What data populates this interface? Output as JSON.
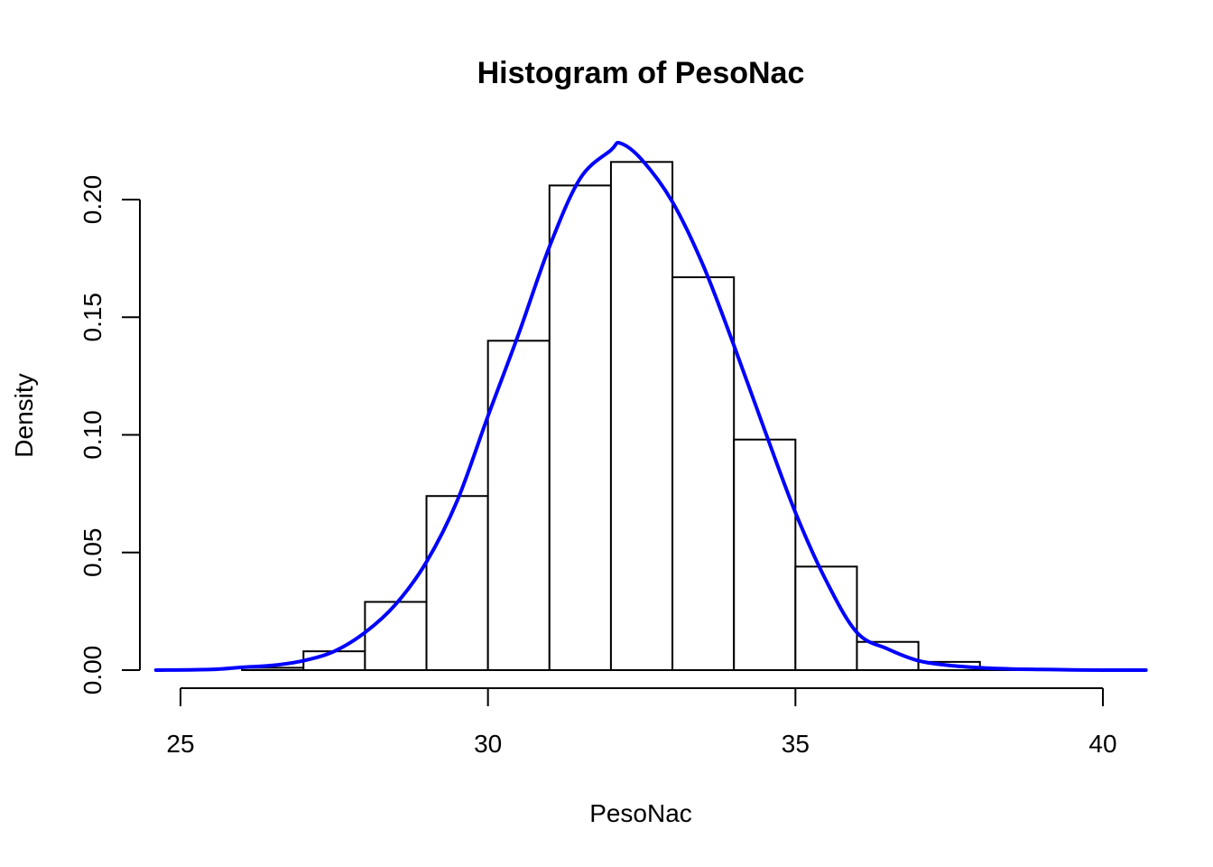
{
  "chart_data": {
    "type": "bar",
    "title": "Histogram of PesoNac",
    "xlabel": "PesoNac",
    "ylabel": "Density",
    "xlim": [
      24.6,
      40.7
    ],
    "ylim": [
      0,
      0.225
    ],
    "x_ticks": [
      25,
      30,
      35,
      40
    ],
    "x_tick_labels": [
      "25",
      "30",
      "35",
      "40"
    ],
    "y_ticks": [
      0,
      0.05,
      0.1,
      0.15,
      0.2
    ],
    "y_tick_labels": [
      "0.00",
      "0.05",
      "0.10",
      "0.15",
      "0.20"
    ],
    "grid": false,
    "bins": [
      {
        "start": 26,
        "end": 27,
        "density": 0.001
      },
      {
        "start": 27,
        "end": 28,
        "density": 0.008
      },
      {
        "start": 28,
        "end": 29,
        "density": 0.029
      },
      {
        "start": 29,
        "end": 30,
        "density": 0.074
      },
      {
        "start": 30,
        "end": 31,
        "density": 0.14
      },
      {
        "start": 31,
        "end": 32,
        "density": 0.206
      },
      {
        "start": 32,
        "end": 33,
        "density": 0.216
      },
      {
        "start": 33,
        "end": 34,
        "density": 0.167
      },
      {
        "start": 34,
        "end": 35,
        "density": 0.098
      },
      {
        "start": 35,
        "end": 36,
        "density": 0.044
      },
      {
        "start": 36,
        "end": 37,
        "density": 0.012
      },
      {
        "start": 37,
        "end": 38,
        "density": 0.0035
      },
      {
        "start": 38,
        "end": 39,
        "density": 0.0005
      }
    ],
    "density_curve": {
      "color": "#0000ff",
      "x": [
        24.6,
        25.5,
        26.0,
        26.5,
        27.0,
        27.5,
        28.0,
        28.5,
        29.0,
        29.5,
        30.0,
        30.5,
        31.0,
        31.5,
        32.0,
        32.15,
        32.5,
        33.0,
        33.5,
        34.0,
        34.5,
        35.0,
        35.5,
        36.0,
        36.5,
        37.0,
        37.5,
        38.0,
        38.5,
        39.0,
        39.5,
        40.0,
        40.7
      ],
      "y": [
        0.0,
        0.0003,
        0.0012,
        0.002,
        0.004,
        0.008,
        0.016,
        0.028,
        0.046,
        0.072,
        0.108,
        0.143,
        0.18,
        0.209,
        0.221,
        0.224,
        0.217,
        0.199,
        0.172,
        0.138,
        0.102,
        0.067,
        0.038,
        0.016,
        0.009,
        0.004,
        0.002,
        0.001,
        0.0005,
        0.0003,
        0.0001,
        0.0,
        0.0
      ]
    }
  }
}
